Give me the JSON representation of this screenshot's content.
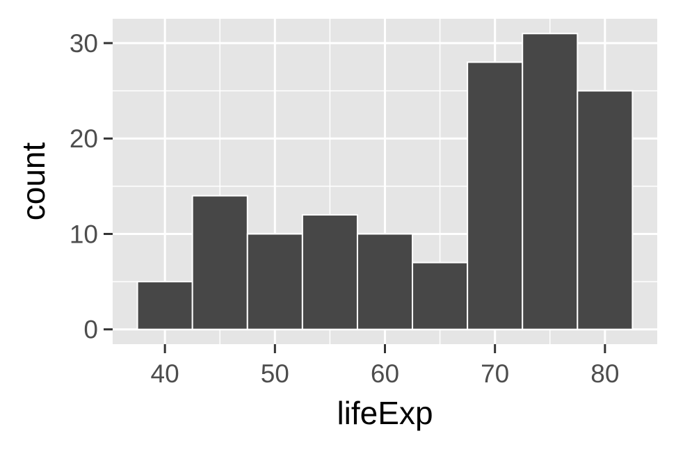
{
  "chart_data": {
    "type": "bar",
    "title": "",
    "xlabel": "lifeExp",
    "ylabel": "count",
    "bin_width": 5,
    "bins": [
      {
        "start": 37.5,
        "end": 42.5,
        "count": 5
      },
      {
        "start": 42.5,
        "end": 47.5,
        "count": 14
      },
      {
        "start": 47.5,
        "end": 52.5,
        "count": 10
      },
      {
        "start": 52.5,
        "end": 57.5,
        "count": 12
      },
      {
        "start": 57.5,
        "end": 62.5,
        "count": 10
      },
      {
        "start": 62.5,
        "end": 67.5,
        "count": 7
      },
      {
        "start": 67.5,
        "end": 72.5,
        "count": 28
      },
      {
        "start": 72.5,
        "end": 77.5,
        "count": 31
      },
      {
        "start": 77.5,
        "end": 82.5,
        "count": 25
      }
    ],
    "xlim": [
      35.25,
      84.75
    ],
    "ylim": [
      -1.55,
      32.55
    ],
    "x_ticks": [
      40,
      50,
      60,
      70,
      80
    ],
    "x_tick_labels": [
      "40",
      "50",
      "60",
      "70",
      "80"
    ],
    "y_ticks": [
      0,
      10,
      20,
      30
    ],
    "y_tick_labels": [
      "0",
      "10",
      "20",
      "30"
    ],
    "grid": true,
    "colors": {
      "panel_background": "#e5e5e5",
      "grid_line": "#ffffff",
      "bar_fill": "#474747",
      "bar_outline": "#ffffff",
      "tick_label": "#4d4d4d",
      "axis_title": "#000000",
      "tick_mark": "#333333"
    }
  }
}
